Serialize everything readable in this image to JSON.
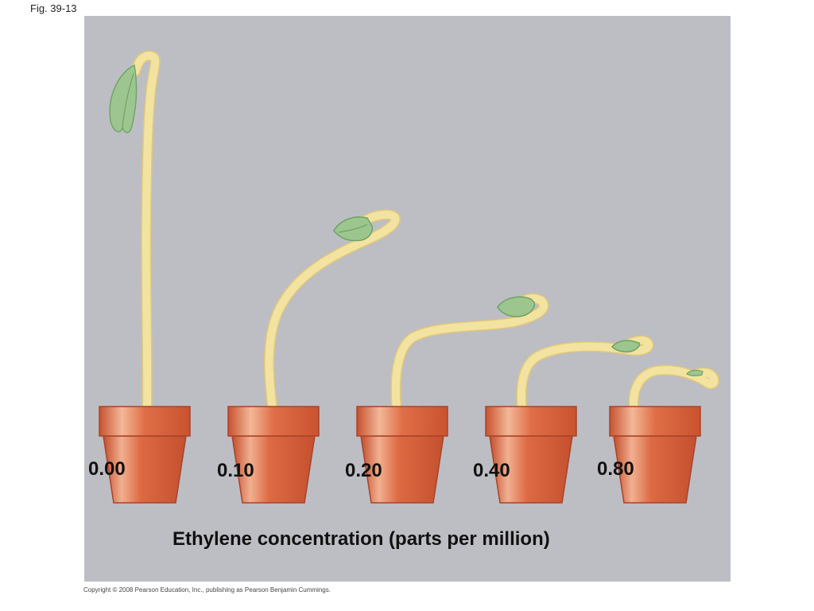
{
  "figure_label": "Fig. 39-13",
  "caption": "Ethylene concentration (parts per million)",
  "copyright": "Copyright © 2008 Pearson Education, Inc., publishing as Pearson Benjamin Cummings.",
  "seedlings": [
    {
      "concentration": "0.00"
    },
    {
      "concentration": "0.10"
    },
    {
      "concentration": "0.20"
    },
    {
      "concentration": "0.40"
    },
    {
      "concentration": "0.80"
    }
  ],
  "colors": {
    "panel_background": "#bdbec3",
    "stem": "#f3e3a0",
    "stem_edge": "#e2c87a",
    "leaf": "#9cc68e",
    "leaf_edge": "#6ea266",
    "pot": "#d9603a",
    "pot_highlight": "#f1b090",
    "pot_edge": "#a8432a"
  },
  "icons": [
    "seedling-icon",
    "flower-pot-icon"
  ]
}
